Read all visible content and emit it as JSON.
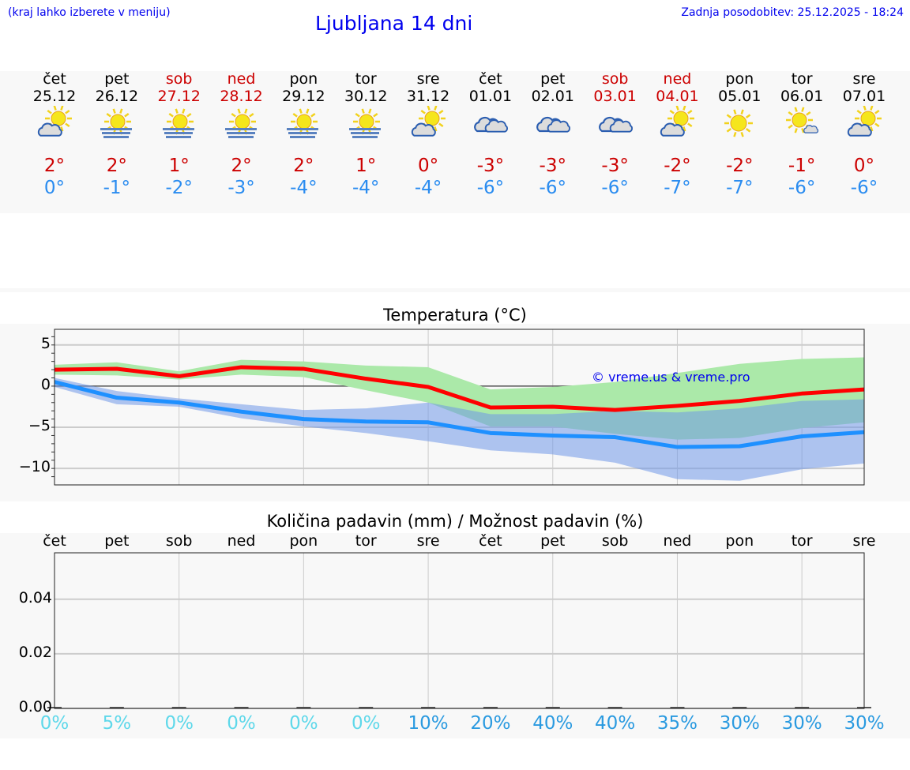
{
  "header": {
    "hint": "(kraj lahko izberete v meniju)",
    "title": "Ljubljana 14 dni",
    "updated": "Zadnja posodobitev: 25.12.2025 - 18:24"
  },
  "colors": {
    "max": "#ff0000",
    "min": "#1e90ff",
    "max_band": "#abe9a9",
    "min_band": "#adc7f2",
    "overlap": "#7dc6a6",
    "weekend": "#cc0000",
    "chance_low": "#5ed8ea",
    "chance_high": "#2a9ae0"
  },
  "days": [
    {
      "name": "čet",
      "date": "25.12",
      "weekend": false,
      "icon": "partly-cloudy",
      "max": "2°",
      "min": "0°"
    },
    {
      "name": "pet",
      "date": "26.12",
      "weekend": false,
      "icon": "sun-fog",
      "max": "2°",
      "min": "-1°"
    },
    {
      "name": "sob",
      "date": "27.12",
      "weekend": true,
      "icon": "sun-fog",
      "max": "1°",
      "min": "-2°"
    },
    {
      "name": "ned",
      "date": "28.12",
      "weekend": true,
      "icon": "sun-fog",
      "max": "2°",
      "min": "-3°"
    },
    {
      "name": "pon",
      "date": "29.12",
      "weekend": false,
      "icon": "sun-fog",
      "max": "2°",
      "min": "-4°"
    },
    {
      "name": "tor",
      "date": "30.12",
      "weekend": false,
      "icon": "sun-fog",
      "max": "1°",
      "min": "-4°"
    },
    {
      "name": "sre",
      "date": "31.12",
      "weekend": false,
      "icon": "partly-cloudy",
      "max": "0°",
      "min": "-4°"
    },
    {
      "name": "čet",
      "date": "01.01",
      "weekend": false,
      "icon": "cloudy",
      "max": "-3°",
      "min": "-6°"
    },
    {
      "name": "pet",
      "date": "02.01",
      "weekend": false,
      "icon": "cloudy",
      "max": "-3°",
      "min": "-6°"
    },
    {
      "name": "sob",
      "date": "03.01",
      "weekend": true,
      "icon": "cloudy",
      "max": "-3°",
      "min": "-6°"
    },
    {
      "name": "ned",
      "date": "04.01",
      "weekend": true,
      "icon": "partly-cloudy",
      "max": "-2°",
      "min": "-7°"
    },
    {
      "name": "pon",
      "date": "05.01",
      "weekend": false,
      "icon": "sunny",
      "max": "-2°",
      "min": "-7°"
    },
    {
      "name": "tor",
      "date": "06.01",
      "weekend": false,
      "icon": "sun-small-cloud",
      "max": "-1°",
      "min": "-6°"
    },
    {
      "name": "sre",
      "date": "07.01",
      "weekend": false,
      "icon": "partly-cloudy",
      "max": "0°",
      "min": "-6°"
    }
  ],
  "chart_data": [
    {
      "type": "line",
      "title": "Temperatura (°C)",
      "ylim": [
        -12,
        6.9
      ],
      "yticks": [
        5,
        0,
        -5,
        -10
      ],
      "ytick_labels": [
        "5",
        "0",
        "−5",
        "−10"
      ],
      "grid": true,
      "watermark": "© vreme.us & vreme.pro",
      "series": [
        {
          "key": "max",
          "values": [
            2.0,
            2.1,
            1.2,
            2.3,
            2.1,
            0.9,
            -0.1,
            -2.6,
            -2.5,
            -2.9,
            -2.4,
            -1.8,
            -0.9,
            -0.4
          ],
          "band_upper": [
            2.6,
            2.9,
            1.8,
            3.2,
            3.0,
            2.5,
            2.3,
            -0.4,
            -0.1,
            0.5,
            1.6,
            2.7,
            3.3,
            3.5
          ],
          "band_lower": [
            1.4,
            1.3,
            0.8,
            1.4,
            1.1,
            -0.5,
            -2.0,
            -4.9,
            -4.9,
            -5.8,
            -6.5,
            -6.3,
            -5.1,
            -4.4
          ]
        },
        {
          "key": "min",
          "values": [
            0.5,
            -1.4,
            -2.0,
            -3.1,
            -4.0,
            -4.3,
            -4.4,
            -5.7,
            -6.0,
            -6.2,
            -7.4,
            -7.3,
            -6.1,
            -5.6
          ],
          "band_upper": [
            1.0,
            -0.6,
            -1.5,
            -2.2,
            -2.9,
            -2.7,
            -2.0,
            -3.4,
            -3.4,
            -3.0,
            -3.2,
            -2.7,
            -1.8,
            -1.6
          ],
          "band_lower": [
            -0.1,
            -2.2,
            -2.5,
            -3.9,
            -4.9,
            -5.7,
            -6.7,
            -7.8,
            -8.3,
            -9.3,
            -11.3,
            -11.5,
            -10.1,
            -9.4
          ]
        }
      ]
    },
    {
      "type": "bar",
      "title": "Količina padavin (mm) / Možnost padavin (%)",
      "ylim": [
        0,
        0.057
      ],
      "yticks": [
        0.04,
        0.02,
        0.0
      ],
      "ytick_labels": [
        "0.04",
        "0.02",
        "0.00"
      ],
      "grid": true,
      "categories": [
        "čet",
        "pet",
        "sob",
        "ned",
        "pon",
        "tor",
        "sre",
        "čet",
        "pet",
        "sob",
        "ned",
        "pon",
        "tor",
        "sre"
      ],
      "values": [
        0,
        0,
        0,
        0,
        0,
        0,
        0,
        0,
        0,
        0,
        0,
        0,
        0,
        0
      ],
      "chance": [
        "0%",
        "5%",
        "0%",
        "0%",
        "0%",
        "0%",
        "10%",
        "20%",
        "40%",
        "40%",
        "35%",
        "30%",
        "30%",
        "30%"
      ],
      "chance_values": [
        0,
        5,
        0,
        0,
        0,
        0,
        10,
        20,
        40,
        40,
        35,
        30,
        30,
        30
      ]
    }
  ]
}
